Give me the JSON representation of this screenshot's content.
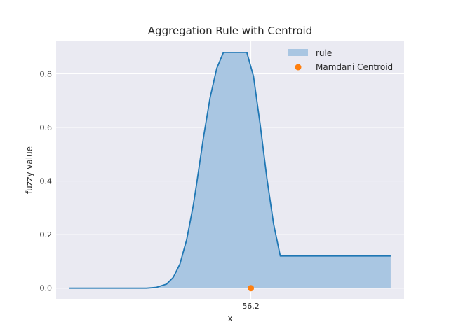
{
  "chart_data": {
    "type": "area",
    "title": "Aggregation Rule with Centroid",
    "xlabel": "x",
    "ylabel": "fuzzy value",
    "xlim": [
      -2,
      102
    ],
    "ylim": [
      -0.04,
      0.924
    ],
    "xticks": [
      56.2
    ],
    "xtick_labels": [
      "56.2"
    ],
    "yticks": [
      0.0,
      0.2,
      0.4,
      0.6,
      0.8
    ],
    "ytick_labels": [
      "0.0",
      "0.2",
      "0.4",
      "0.6",
      "0.8"
    ],
    "grid": true,
    "legend_position": "top-right",
    "series": [
      {
        "name": "rule",
        "style": "filled-line",
        "x": [
          2,
          10,
          20,
          25,
          28,
          31,
          33,
          35,
          37,
          39,
          40,
          42,
          44,
          46,
          48,
          50,
          52,
          55,
          57,
          59,
          61,
          63,
          65,
          98
        ],
        "y": [
          0.0,
          0.0,
          0.0,
          0.0,
          0.003,
          0.015,
          0.04,
          0.09,
          0.18,
          0.31,
          0.39,
          0.56,
          0.71,
          0.82,
          0.88,
          0.88,
          0.88,
          0.88,
          0.79,
          0.61,
          0.41,
          0.24,
          0.12,
          0.12
        ]
      }
    ],
    "points": [
      {
        "name": "Mamdani Centroid",
        "x": 56.2,
        "y": 0.0
      }
    ],
    "colors": {
      "line": "#1f77b4",
      "fill": "#a9c6e2",
      "centroid": "#ff7f0e",
      "background": "#eaeaf2",
      "grid": "#ffffff"
    }
  }
}
